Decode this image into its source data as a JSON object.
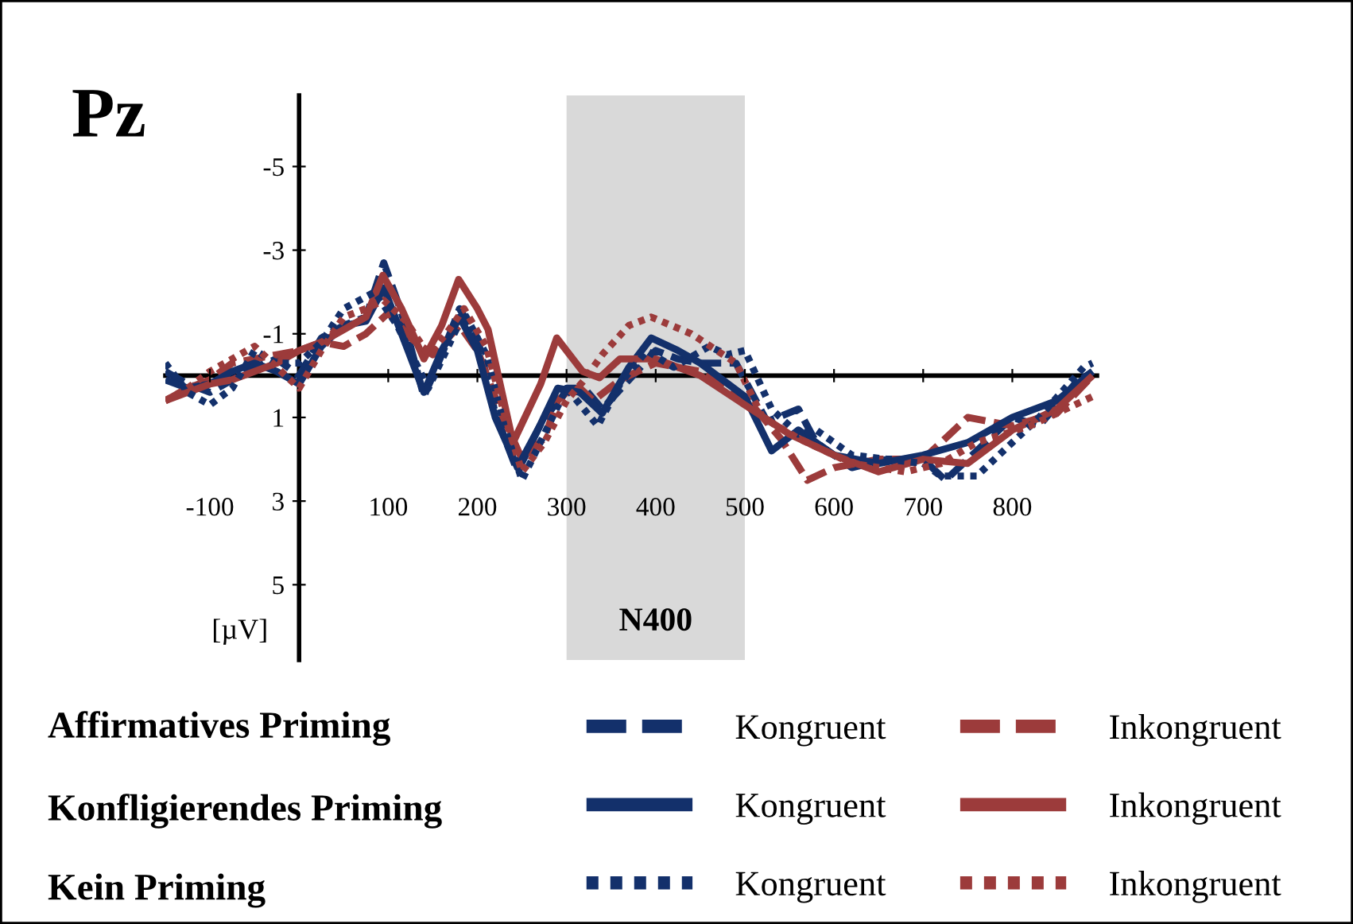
{
  "chart_data": {
    "type": "line",
    "title": "Pz",
    "ylabel": "[µV]",
    "annotations": [
      "Affirmatives Priming",
      "Konfligierendes Priming",
      "Kein Priming"
    ],
    "xlim": [
      -150,
      895
    ],
    "ylim": [
      6.8,
      -6.7
    ],
    "xticks": [
      -100,
      100,
      200,
      300,
      400,
      500,
      600,
      700,
      800
    ],
    "yticks": [
      -5,
      -3,
      -1,
      1,
      3,
      5
    ],
    "grid": false,
    "legend": "bottom",
    "tick_labels": true,
    "bands": [
      {
        "axis": "x",
        "from": 300,
        "to": 500,
        "label": "N400",
        "color": "#d9d9d9"
      }
    ],
    "series": [
      {
        "name": "Kongruent",
        "color": "#13306b",
        "line_style": "dashed",
        "x": [
          -150,
          -125,
          -100,
          -75,
          -50,
          -25,
          0,
          25,
          50,
          75,
          95,
          115,
          140,
          160,
          180,
          200,
          220,
          245,
          270,
          300,
          320,
          340,
          370,
          400,
          425,
          450,
          490,
          525,
          560,
          580,
          620,
          660,
          700,
          725,
          760,
          800,
          830,
          870,
          890
        ],
        "values": [
          -0.1,
          0.2,
          0.4,
          0.1,
          -0.2,
          -0.4,
          0,
          -0.9,
          -1.2,
          -1.4,
          -2.7,
          -1.5,
          0.5,
          -0.5,
          -1.6,
          -0.9,
          0.9,
          2.3,
          1.2,
          0.3,
          0.3,
          0.8,
          0.1,
          -0.6,
          -0.4,
          -0.3,
          -0.3,
          1.1,
          0.8,
          1.6,
          2.2,
          2.0,
          2.0,
          2.5,
          1.8,
          1.0,
          1.2,
          0.2,
          -0.1
        ]
      },
      {
        "name": "Inkongruent",
        "color": "#9c3b3b",
        "line_style": "dashed",
        "x": [
          -150,
          -125,
          -100,
          -75,
          -50,
          -25,
          0,
          25,
          50,
          75,
          100,
          125,
          150,
          180,
          200,
          225,
          250,
          275,
          290,
          310,
          330,
          360,
          400,
          450,
          500,
          540,
          570,
          600,
          650,
          700,
          730,
          750,
          800,
          850,
          890
        ],
        "values": [
          0.6,
          0.3,
          0.1,
          -0.3,
          -0.4,
          -0.5,
          -0.6,
          -0.8,
          -0.7,
          -1.0,
          -1.5,
          -0.9,
          -0.5,
          -1.2,
          -0.6,
          0.8,
          2.0,
          1.5,
          0.6,
          0.2,
          0.6,
          0.1,
          -0.3,
          -0.1,
          0.5,
          1.5,
          2.5,
          2.2,
          2.0,
          2.0,
          1.4,
          1.0,
          1.2,
          0.9,
          0.0
        ]
      },
      {
        "name": "Kongruent",
        "color": "#13306b",
        "line_style": "solid",
        "x": [
          -150,
          -125,
          -100,
          -75,
          -50,
          -25,
          0,
          25,
          50,
          75,
          95,
          115,
          140,
          160,
          180,
          200,
          220,
          245,
          270,
          290,
          315,
          340,
          370,
          395,
          425,
          450,
          500,
          530,
          560,
          600,
          650,
          700,
          750,
          800,
          850,
          890
        ],
        "values": [
          0.1,
          0.3,
          0.2,
          -0.1,
          -0.3,
          -0.1,
          0.2,
          -0.7,
          -1.2,
          -1.3,
          -2.1,
          -1.0,
          0.4,
          -0.6,
          -1.4,
          -0.6,
          1.0,
          2.2,
          1.2,
          0.3,
          0.4,
          0.9,
          -0.2,
          -0.9,
          -0.6,
          -0.3,
          0.5,
          1.8,
          1.3,
          1.9,
          2.1,
          1.9,
          1.6,
          1.0,
          0.6,
          -0.1
        ]
      },
      {
        "name": "Inkongruent",
        "color": "#9c3b3b",
        "line_style": "solid",
        "x": [
          -150,
          -125,
          -100,
          -75,
          -50,
          -25,
          0,
          25,
          50,
          75,
          94,
          115,
          140,
          160,
          179,
          200,
          212,
          240,
          271,
          289,
          318,
          337,
          360,
          400,
          450,
          500,
          550,
          600,
          650,
          700,
          750,
          800,
          850,
          890
        ],
        "values": [
          0.6,
          0.4,
          0.2,
          0.1,
          -0.1,
          -0.3,
          -0.6,
          -0.8,
          -1.1,
          -1.4,
          -2.4,
          -1.6,
          -0.4,
          -1.2,
          -2.3,
          -1.6,
          -1.1,
          1.6,
          0.2,
          -0.9,
          -0.1,
          0.05,
          -0.4,
          -0.4,
          0.0,
          0.7,
          1.4,
          1.9,
          2.3,
          2.0,
          2.1,
          1.3,
          0.8,
          0.0
        ]
      },
      {
        "name": "Kongruent",
        "color": "#13306b",
        "line_style": "dotted",
        "x": [
          -150,
          -125,
          -100,
          -75,
          -50,
          -25,
          0,
          25,
          50,
          85,
          110,
          145,
          165,
          185,
          210,
          230,
          250,
          275,
          300,
          335,
          360,
          390,
          420,
          460,
          480,
          500,
          530,
          560,
          580,
          620,
          660,
          700,
          720,
          760,
          790,
          830,
          880,
          890
        ],
        "values": [
          -0.3,
          0.4,
          0.7,
          0.3,
          -0.6,
          -0.3,
          -0.3,
          -0.8,
          -1.6,
          -2.0,
          -1.2,
          0.3,
          -0.6,
          -1.5,
          -0.5,
          1.2,
          2.5,
          1.4,
          0.3,
          1.2,
          0.2,
          -0.6,
          -0.2,
          -0.7,
          -0.5,
          -0.6,
          0.8,
          1.4,
          1.3,
          1.9,
          2.0,
          2.1,
          2.4,
          2.4,
          1.8,
          1.0,
          -0.2,
          -0.3
        ]
      },
      {
        "name": "Inkongruent",
        "color": "#9c3b3b",
        "line_style": "dotted",
        "x": [
          -150,
          -125,
          -100,
          -75,
          -50,
          -25,
          0,
          25,
          50,
          75,
          95,
          120,
          145,
          165,
          185,
          210,
          230,
          250,
          275,
          300,
          320,
          340,
          370,
          395,
          440,
          490,
          520,
          560,
          620,
          680,
          720,
          760,
          820,
          880,
          890
        ],
        "values": [
          0.6,
          0.3,
          -0.1,
          -0.4,
          -0.7,
          -0.2,
          0.3,
          -0.6,
          -1.4,
          -1.6,
          -1.8,
          -1.3,
          -0.5,
          -1.0,
          -1.6,
          -0.7,
          0.9,
          2.3,
          1.6,
          0.6,
          0.1,
          -0.5,
          -1.2,
          -1.4,
          -1.0,
          -0.3,
          1.0,
          1.5,
          2.1,
          2.3,
          2.1,
          1.6,
          1.2,
          0.6,
          0.5
        ]
      }
    ]
  }
}
